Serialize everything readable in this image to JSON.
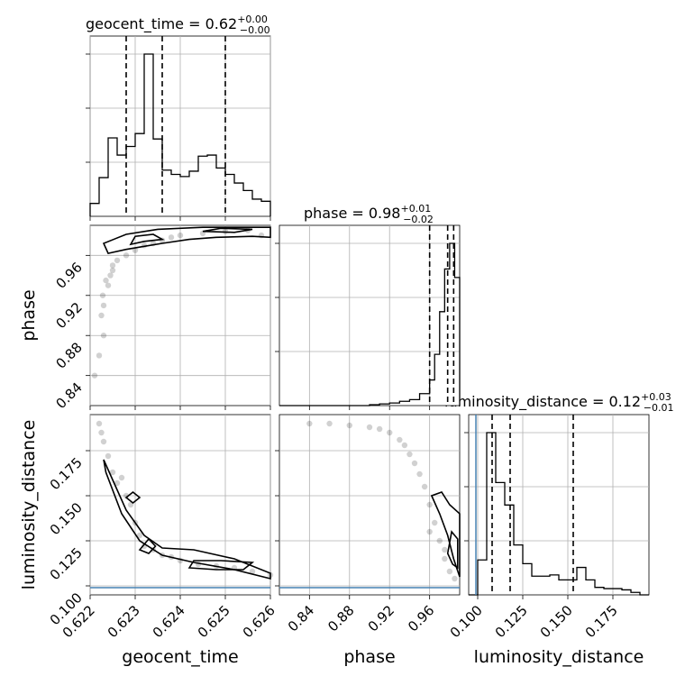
{
  "chart_data": {
    "type": "corner",
    "parameters": [
      "geocent_time",
      "phase",
      "luminosity_distance"
    ],
    "titles": [
      {
        "param": "geocent_time",
        "text": "geocent_time = 0.62",
        "plus": "+0.00",
        "minus": "−0.00"
      },
      {
        "param": "phase",
        "text": "phase = 0.98",
        "plus": "+0.01",
        "minus": "−0.02"
      },
      {
        "param": "luminosity_distance",
        "text": "luminosity_distance = 0.12",
        "plus": "+0.03",
        "minus": "−0.01"
      }
    ],
    "axis_labels": {
      "geocent_time": "geocent_time",
      "phase": "phase",
      "luminosity_distance": "luminosity_distance"
    },
    "ranges": {
      "geocent_time": [
        0.622,
        0.626
      ],
      "phase": [
        0.81,
        0.99
      ],
      "luminosity_distance": [
        0.095,
        0.195
      ]
    },
    "ticks": {
      "geocent_time": [
        "0.622",
        "0.623",
        "0.624",
        "0.625",
        "0.626"
      ],
      "phase": [
        "0.84",
        "0.88",
        "0.92",
        "0.96"
      ],
      "luminosity_distance": [
        "0.100",
        "0.125",
        "0.150",
        "0.175"
      ]
    },
    "truth": {
      "luminosity_distance": 0.099
    },
    "histograms": {
      "geocent_time": {
        "edges": [
          0.622,
          0.6222,
          0.6224,
          0.6226,
          0.6228,
          0.623,
          0.6232,
          0.6234,
          0.6236,
          0.6238,
          0.624,
          0.6242,
          0.6244,
          0.6246,
          0.6248,
          0.625,
          0.6252,
          0.6254,
          0.6256,
          0.6258,
          0.626
        ],
        "counts": [
          12,
          36,
          73,
          57,
          65,
          77,
          151,
          72,
          43,
          39,
          37,
          42,
          56,
          57,
          45,
          39,
          31,
          24,
          16,
          14
        ],
        "quantiles": [
          0.6228,
          0.6236,
          0.625
        ]
      },
      "phase": {
        "edges": [
          0.81,
          0.82,
          0.83,
          0.84,
          0.85,
          0.86,
          0.87,
          0.88,
          0.89,
          0.9,
          0.91,
          0.92,
          0.93,
          0.94,
          0.95,
          0.96,
          0.965,
          0.97,
          0.975,
          0.98,
          0.985,
          0.99
        ],
        "counts": [
          0,
          0,
          0,
          0,
          0,
          0,
          0,
          0,
          0,
          1,
          2,
          3,
          5,
          7,
          14,
          30,
          60,
          110,
          160,
          190,
          150
        ],
        "quantiles": [
          0.96,
          0.978,
          0.984
        ]
      },
      "luminosity_distance": {
        "edges": [
          0.095,
          0.1,
          0.105,
          0.11,
          0.115,
          0.12,
          0.125,
          0.13,
          0.135,
          0.14,
          0.145,
          0.15,
          0.155,
          0.16,
          0.165,
          0.17,
          0.175,
          0.18,
          0.185,
          0.19,
          0.195
        ],
        "counts": [
          0,
          28,
          130,
          90,
          72,
          40,
          25,
          15,
          15,
          16,
          12,
          12,
          22,
          12,
          6,
          5,
          5,
          4,
          2,
          0
        ],
        "quantiles": [
          0.108,
          0.118,
          0.153
        ]
      }
    },
    "scatter": {
      "geocent_time_vs_phase": {
        "x": [
          0.6221,
          0.6222,
          0.6223,
          0.62225,
          0.6223,
          0.6224,
          0.6225,
          0.6226,
          0.6228,
          0.623,
          0.6232,
          0.6234,
          0.6236,
          0.6238,
          0.624,
          0.6245,
          0.625,
          0.6255,
          0.6258,
          0.6225,
          0.62228,
          0.62235,
          0.62245
        ],
        "y": [
          0.84,
          0.86,
          0.88,
          0.9,
          0.91,
          0.93,
          0.945,
          0.955,
          0.96,
          0.965,
          0.97,
          0.972,
          0.975,
          0.978,
          0.98,
          0.982,
          0.984,
          0.985,
          0.98,
          0.95,
          0.92,
          0.935,
          0.94
        ]
      },
      "geocent_time_vs_luminosity_distance": {
        "x": [
          0.6222,
          0.6223,
          0.6224,
          0.6225,
          0.6226,
          0.6228,
          0.6229,
          0.623,
          0.6231,
          0.6232,
          0.6234,
          0.6236,
          0.6238,
          0.624,
          0.6244,
          0.6248,
          0.6252,
          0.6256,
          0.626,
          0.62225,
          0.6227
        ],
        "y": [
          0.19,
          0.18,
          0.172,
          0.163,
          0.157,
          0.15,
          0.145,
          0.135,
          0.128,
          0.122,
          0.12,
          0.117,
          0.116,
          0.114,
          0.112,
          0.111,
          0.11,
          0.108,
          0.106,
          0.185,
          0.16
        ]
      },
      "phase_vs_luminosity_distance": {
        "x": [
          0.84,
          0.86,
          0.88,
          0.9,
          0.91,
          0.92,
          0.93,
          0.935,
          0.94,
          0.945,
          0.95,
          0.955,
          0.96,
          0.965,
          0.97,
          0.975,
          0.98,
          0.985,
          0.975,
          0.96
        ],
        "y": [
          0.19,
          0.19,
          0.189,
          0.188,
          0.187,
          0.185,
          0.181,
          0.178,
          0.173,
          0.168,
          0.162,
          0.155,
          0.145,
          0.135,
          0.125,
          0.115,
          0.108,
          0.104,
          0.12,
          0.13
        ]
      }
    },
    "contours": {
      "geocent_time_vs_phase": [
        [
          [
            0.6224,
            0.962
          ],
          [
            0.6228,
            0.966
          ],
          [
            0.6232,
            0.969
          ],
          [
            0.6236,
            0.972
          ],
          [
            0.6242,
            0.976
          ],
          [
            0.6248,
            0.978
          ],
          [
            0.6256,
            0.979
          ],
          [
            0.626,
            0.978
          ],
          [
            0.626,
            0.988
          ],
          [
            0.6245,
            0.988
          ],
          [
            0.6235,
            0.986
          ],
          [
            0.6228,
            0.981
          ],
          [
            0.6223,
            0.972
          ]
        ],
        [
          [
            0.6229,
            0.971
          ],
          [
            0.6232,
            0.974
          ],
          [
            0.6236,
            0.976
          ],
          [
            0.6234,
            0.981
          ],
          [
            0.623,
            0.979
          ]
        ],
        [
          [
            0.6245,
            0.984
          ],
          [
            0.6252,
            0.983
          ],
          [
            0.6256,
            0.986
          ],
          [
            0.6249,
            0.987
          ]
        ]
      ],
      "geocent_time_vs_luminosity_distance": [
        [
          [
            0.6223,
            0.17
          ],
          [
            0.62235,
            0.163
          ],
          [
            0.6227,
            0.14
          ],
          [
            0.6231,
            0.125
          ],
          [
            0.6236,
            0.117
          ],
          [
            0.6243,
            0.113
          ],
          [
            0.6252,
            0.109
          ],
          [
            0.626,
            0.104
          ],
          [
            0.626,
            0.107
          ],
          [
            0.6252,
            0.115
          ],
          [
            0.6243,
            0.12
          ],
          [
            0.6236,
            0.121
          ],
          [
            0.6232,
            0.128
          ],
          [
            0.6228,
            0.142
          ]
        ],
        [
          [
            0.6242,
            0.11
          ],
          [
            0.6248,
            0.109
          ],
          [
            0.6254,
            0.109
          ],
          [
            0.6256,
            0.113
          ],
          [
            0.6249,
            0.114
          ],
          [
            0.6243,
            0.114
          ]
        ],
        [
          [
            0.6228,
            0.149
          ],
          [
            0.62295,
            0.146
          ],
          [
            0.6231,
            0.149
          ],
          [
            0.62295,
            0.152
          ]
        ],
        [
          [
            0.6231,
            0.12
          ],
          [
            0.6233,
            0.118
          ],
          [
            0.62345,
            0.122
          ],
          [
            0.6233,
            0.126
          ]
        ]
      ],
      "phase_vs_luminosity_distance": [
        [
          [
            0.962,
            0.15
          ],
          [
            0.97,
            0.14
          ],
          [
            0.978,
            0.128
          ],
          [
            0.984,
            0.115
          ],
          [
            0.99,
            0.105
          ],
          [
            0.99,
            0.14
          ],
          [
            0.98,
            0.145
          ],
          [
            0.972,
            0.152
          ]
        ],
        [
          [
            0.978,
            0.118
          ],
          [
            0.983,
            0.112
          ],
          [
            0.988,
            0.11
          ],
          [
            0.988,
            0.126
          ],
          [
            0.982,
            0.13
          ]
        ]
      ]
    }
  }
}
